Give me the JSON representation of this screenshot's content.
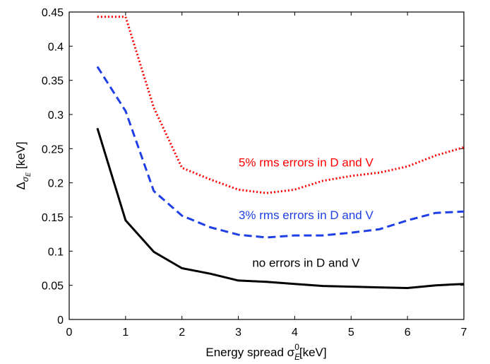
{
  "chart_data": {
    "type": "line",
    "xlabel": "Energy spread σ",
    "xlabel_sub": "E",
    "xlabel_sup": "0",
    "xlabel_unit": "[keV]",
    "ylabel": "Δ",
    "ylabel_sub": "σ",
    "ylabel_subsub": "E",
    "ylabel_unit": " [keV]",
    "xlim": [
      0,
      7
    ],
    "ylim": [
      0,
      0.45
    ],
    "xticks": [
      "0",
      "1",
      "2",
      "3",
      "4",
      "5",
      "6",
      "7"
    ],
    "yticks": [
      "0",
      "0.05",
      "0.1",
      "0.15",
      "0.2",
      "0.25",
      "0.3",
      "0.35",
      "0.4",
      "0.45"
    ],
    "grid": false,
    "series": [
      {
        "name": "5% rms errors in D and V",
        "color": "#ff0000",
        "style": "dotted",
        "x": [
          0.5,
          1.0,
          1.5,
          2.0,
          2.5,
          3.0,
          3.5,
          4.0,
          4.5,
          5.0,
          5.5,
          6.0,
          6.5,
          7.0
        ],
        "y": [
          0.443,
          0.443,
          0.31,
          0.222,
          0.205,
          0.19,
          0.185,
          0.19,
          0.203,
          0.21,
          0.215,
          0.224,
          0.24,
          0.252
        ]
      },
      {
        "name": "3% rms errors in D and V",
        "color": "#1f3fe6",
        "style": "dashed",
        "x": [
          0.5,
          1.0,
          1.5,
          2.0,
          2.5,
          3.0,
          3.5,
          4.0,
          4.5,
          5.0,
          5.5,
          6.0,
          6.5,
          7.0
        ],
        "y": [
          0.37,
          0.305,
          0.188,
          0.152,
          0.135,
          0.124,
          0.12,
          0.123,
          0.123,
          0.127,
          0.132,
          0.145,
          0.156,
          0.158
        ]
      },
      {
        "name": "no errors in D and V",
        "color": "#000000",
        "style": "solid",
        "x": [
          0.5,
          1.0,
          1.5,
          2.0,
          2.5,
          3.0,
          3.5,
          4.0,
          4.5,
          5.0,
          5.5,
          6.0,
          6.5,
          7.0
        ],
        "y": [
          0.28,
          0.145,
          0.099,
          0.075,
          0.067,
          0.057,
          0.055,
          0.052,
          0.049,
          0.048,
          0.047,
          0.046,
          0.05,
          0.052
        ]
      }
    ],
    "annotations": [
      {
        "text": "5% rms errors in D and V",
        "color": "#ff0000",
        "x": 4.2,
        "y": 0.224
      },
      {
        "text": "3% rms errors in D and V",
        "color": "#1f3fe6",
        "x": 4.2,
        "y": 0.147
      },
      {
        "text": "no errors in D and V",
        "color": "#000000",
        "x": 4.2,
        "y": 0.077
      }
    ]
  }
}
